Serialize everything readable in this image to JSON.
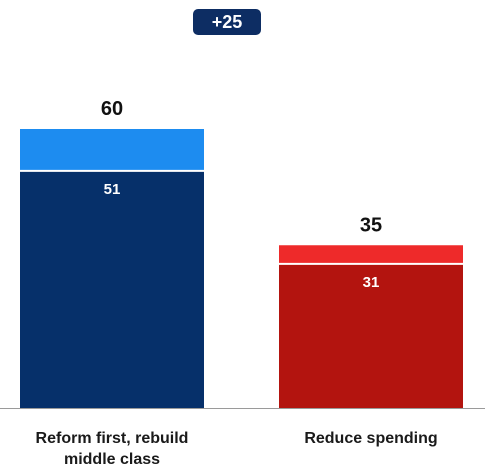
{
  "chart_data": {
    "type": "bar",
    "stacked": true,
    "categories": [
      "Reform first, rebuild middle class",
      "Reduce spending"
    ],
    "category_lines": [
      [
        "Reform first, rebuild",
        "middle class"
      ],
      [
        "Reduce spending"
      ]
    ],
    "series": [
      {
        "values": [
          51,
          31
        ]
      },
      {
        "values": [
          9,
          4
        ]
      }
    ],
    "totals": [
      60,
      35
    ],
    "difference_label": "+25",
    "ylim": [
      0,
      60
    ],
    "grid": false,
    "legend": "none",
    "colors": {
      "base": [
        "#06306a",
        "#b3140f"
      ],
      "top": [
        "#1d8cf0",
        "#ee2a2a"
      ],
      "badge": "#0d2d63"
    }
  }
}
